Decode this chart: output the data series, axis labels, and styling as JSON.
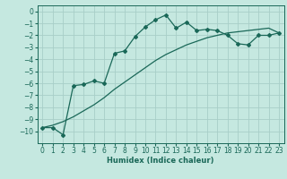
{
  "xlabel": "Humidex (Indice chaleur)",
  "background_color": "#c5e8e0",
  "grid_color": "#a8cec8",
  "line_color": "#1a6858",
  "x_line1": [
    0,
    1,
    2,
    3,
    4,
    5,
    6,
    7,
    8,
    9,
    10,
    11,
    12,
    13,
    14,
    15,
    16,
    17,
    18,
    19,
    20,
    21,
    22,
    23
  ],
  "y_line1": [
    -9.7,
    -9.7,
    -10.3,
    -6.2,
    -6.1,
    -5.8,
    -6.0,
    -3.5,
    -3.3,
    -2.1,
    -1.3,
    -0.7,
    -0.3,
    -1.4,
    -0.9,
    -1.6,
    -1.5,
    -1.6,
    -2.0,
    -2.7,
    -2.8,
    -2.0,
    -2.0,
    -1.8
  ],
  "x_line2": [
    0,
    1,
    2,
    3,
    4,
    5,
    6,
    7,
    8,
    9,
    10,
    11,
    12,
    13,
    14,
    15,
    16,
    17,
    18,
    19,
    20,
    21,
    22,
    23
  ],
  "y_line2": [
    -9.7,
    -9.5,
    -9.2,
    -8.8,
    -8.3,
    -7.8,
    -7.2,
    -6.5,
    -5.9,
    -5.3,
    -4.7,
    -4.1,
    -3.6,
    -3.2,
    -2.8,
    -2.5,
    -2.2,
    -2.0,
    -1.8,
    -1.7,
    -1.6,
    -1.5,
    -1.4,
    -1.8
  ],
  "ylim": [
    -11,
    0.5
  ],
  "xlim": [
    -0.5,
    23.5
  ],
  "yticks": [
    0,
    -1,
    -2,
    -3,
    -4,
    -5,
    -6,
    -7,
    -8,
    -9,
    -10
  ],
  "xticks": [
    0,
    1,
    2,
    3,
    4,
    5,
    6,
    7,
    8,
    9,
    10,
    11,
    12,
    13,
    14,
    15,
    16,
    17,
    18,
    19,
    20,
    21,
    22,
    23
  ],
  "xlabel_fontsize": 6.0,
  "tick_fontsize": 5.5
}
